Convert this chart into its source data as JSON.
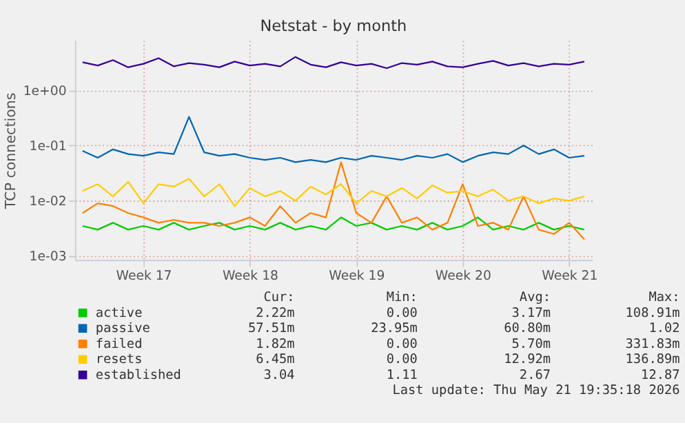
{
  "chart_data": {
    "type": "line",
    "title": "Netstat - by month",
    "ylabel": "TCP connections",
    "categories": [
      null,
      null,
      null,
      null,
      "Week 17",
      null,
      null,
      null,
      null,
      null,
      null,
      "Week 18",
      null,
      null,
      null,
      null,
      null,
      null,
      "Week 19",
      null,
      null,
      null,
      null,
      null,
      null,
      "Week 20",
      null,
      null,
      null,
      null,
      null,
      null,
      "Week 21",
      null
    ],
    "ylim": [
      0.00085,
      8
    ],
    "log": true,
    "yticks": [
      {
        "value": 0.001,
        "label": "1e-03"
      },
      {
        "value": 0.01,
        "label": "1e-02"
      },
      {
        "value": 0.1,
        "label": "1e-01"
      },
      {
        "value": 1,
        "label": "1e+00"
      }
    ],
    "grid": true,
    "legend": "bottom",
    "series": [
      {
        "name": "active",
        "color": "#00cc00",
        "values": [
          0.0035,
          0.003,
          0.004,
          0.003,
          0.0035,
          0.003,
          0.004,
          0.003,
          0.0035,
          0.004,
          0.003,
          0.0035,
          0.003,
          0.004,
          0.003,
          0.0035,
          0.003,
          0.005,
          0.0035,
          0.004,
          0.003,
          0.0035,
          0.003,
          0.004,
          0.003,
          0.0035,
          0.005,
          0.003,
          0.0035,
          0.003,
          0.004,
          0.003,
          0.0035,
          0.003
        ]
      },
      {
        "name": "passive",
        "color": "#0066b3",
        "values": [
          0.08,
          0.06,
          0.085,
          0.07,
          0.065,
          0.075,
          0.07,
          0.33,
          0.075,
          0.065,
          0.07,
          0.06,
          0.055,
          0.06,
          0.05,
          0.055,
          0.05,
          0.06,
          0.055,
          0.065,
          0.06,
          0.055,
          0.065,
          0.06,
          0.07,
          0.05,
          0.065,
          0.075,
          0.07,
          0.1,
          0.07,
          0.085,
          0.06,
          0.065
        ]
      },
      {
        "name": "failed",
        "color": "#ff8000",
        "values": [
          0.006,
          0.009,
          0.008,
          0.006,
          0.005,
          0.004,
          0.0045,
          0.004,
          0.004,
          0.0035,
          0.004,
          0.005,
          0.0035,
          0.008,
          0.004,
          0.006,
          0.005,
          0.05,
          0.006,
          0.004,
          0.012,
          0.004,
          0.005,
          0.003,
          0.004,
          0.02,
          0.0035,
          0.004,
          0.003,
          0.012,
          0.003,
          0.0025,
          0.004,
          0.002
        ]
      },
      {
        "name": "resets",
        "color": "#ffcc00",
        "values": [
          0.015,
          0.02,
          0.012,
          0.022,
          0.009,
          0.02,
          0.018,
          0.025,
          0.012,
          0.02,
          0.008,
          0.017,
          0.012,
          0.015,
          0.01,
          0.018,
          0.013,
          0.02,
          0.009,
          0.015,
          0.012,
          0.017,
          0.011,
          0.019,
          0.014,
          0.015,
          0.012,
          0.016,
          0.01,
          0.012,
          0.009,
          0.011,
          0.01,
          0.012
        ]
      },
      {
        "name": "established",
        "color": "#330099",
        "values": [
          3.2,
          2.8,
          3.5,
          2.6,
          3.0,
          3.8,
          2.7,
          3.1,
          2.9,
          2.6,
          3.3,
          2.8,
          3.0,
          2.7,
          4.0,
          2.9,
          2.6,
          3.2,
          2.8,
          3.0,
          2.5,
          3.1,
          2.9,
          3.3,
          2.7,
          2.6,
          3.0,
          3.4,
          2.8,
          3.1,
          2.7,
          3.0,
          2.9,
          3.3
        ]
      }
    ],
    "annotations": [
      "Cur:",
      "Min:",
      "Avg:",
      "Max:",
      "2.22m",
      "0.00",
      "3.17m",
      "108.91m",
      "57.51m",
      "23.95m",
      "60.80m",
      "1.02",
      "1.82m",
      "0.00",
      "5.70m",
      "331.83m",
      "6.45m",
      "0.00",
      "12.92m",
      "136.89m",
      "3.04",
      "1.11",
      "2.67",
      "12.87",
      "Last update: Thu May 21 19:35:18 2026"
    ]
  }
}
